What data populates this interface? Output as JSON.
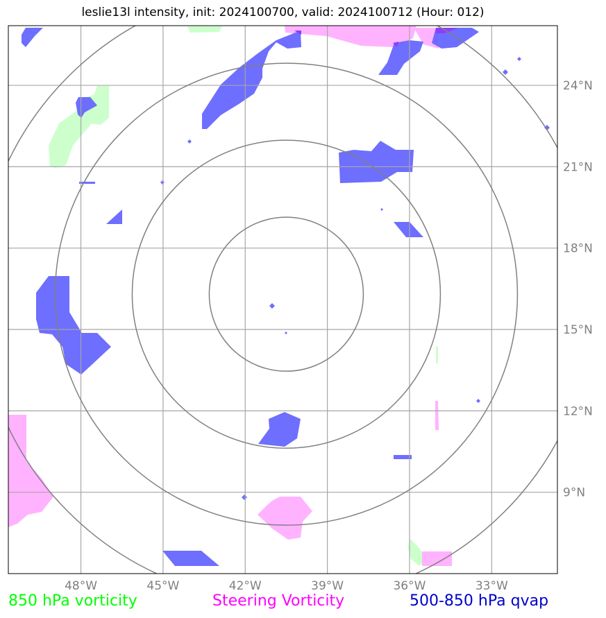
{
  "title": "leslie13l intensity, init: 2024100700, valid: 2024100712 (Hour: 012)",
  "map": {
    "lon_ticks": [
      {
        "lon": -48,
        "label": "48°W"
      },
      {
        "lon": -45,
        "label": "45°W"
      },
      {
        "lon": -42,
        "label": "42°W"
      },
      {
        "lon": -39,
        "label": "39°W"
      },
      {
        "lon": -36,
        "label": "36°W"
      },
      {
        "lon": -33,
        "label": "33°W"
      }
    ],
    "lat_ticks": [
      {
        "lat": 9,
        "label": "9°N"
      },
      {
        "lat": 12,
        "label": "12°N"
      },
      {
        "lat": 15,
        "label": "15°N"
      },
      {
        "lat": 18,
        "label": "18°N"
      },
      {
        "lat": 21,
        "label": "21°N"
      },
      {
        "lat": 24,
        "label": "24°N"
      }
    ],
    "extent": {
      "lon_min": -50.65,
      "lon_max": -30.6,
      "lat_min": 6.0,
      "lat_max": 26.2
    },
    "storm_center": {
      "lon": -40.5,
      "lat": 16.3
    },
    "range_rings_count": 4,
    "colors": {
      "grid": "#a6a6a6",
      "rings": "#808080",
      "vort850": "#ccffcc",
      "steering": "#ffb3ff",
      "qvap": "#6666ff",
      "overlap": "#8c3cff"
    }
  },
  "legend": {
    "vort850": {
      "label": "850 hPa vorticity",
      "color": "#00ff00"
    },
    "steering": {
      "label": "Steering Vorticity",
      "color": "#ff00ff"
    },
    "qvap": {
      "label": "500-850 hPa qvap",
      "color": "#0000cc"
    }
  }
}
